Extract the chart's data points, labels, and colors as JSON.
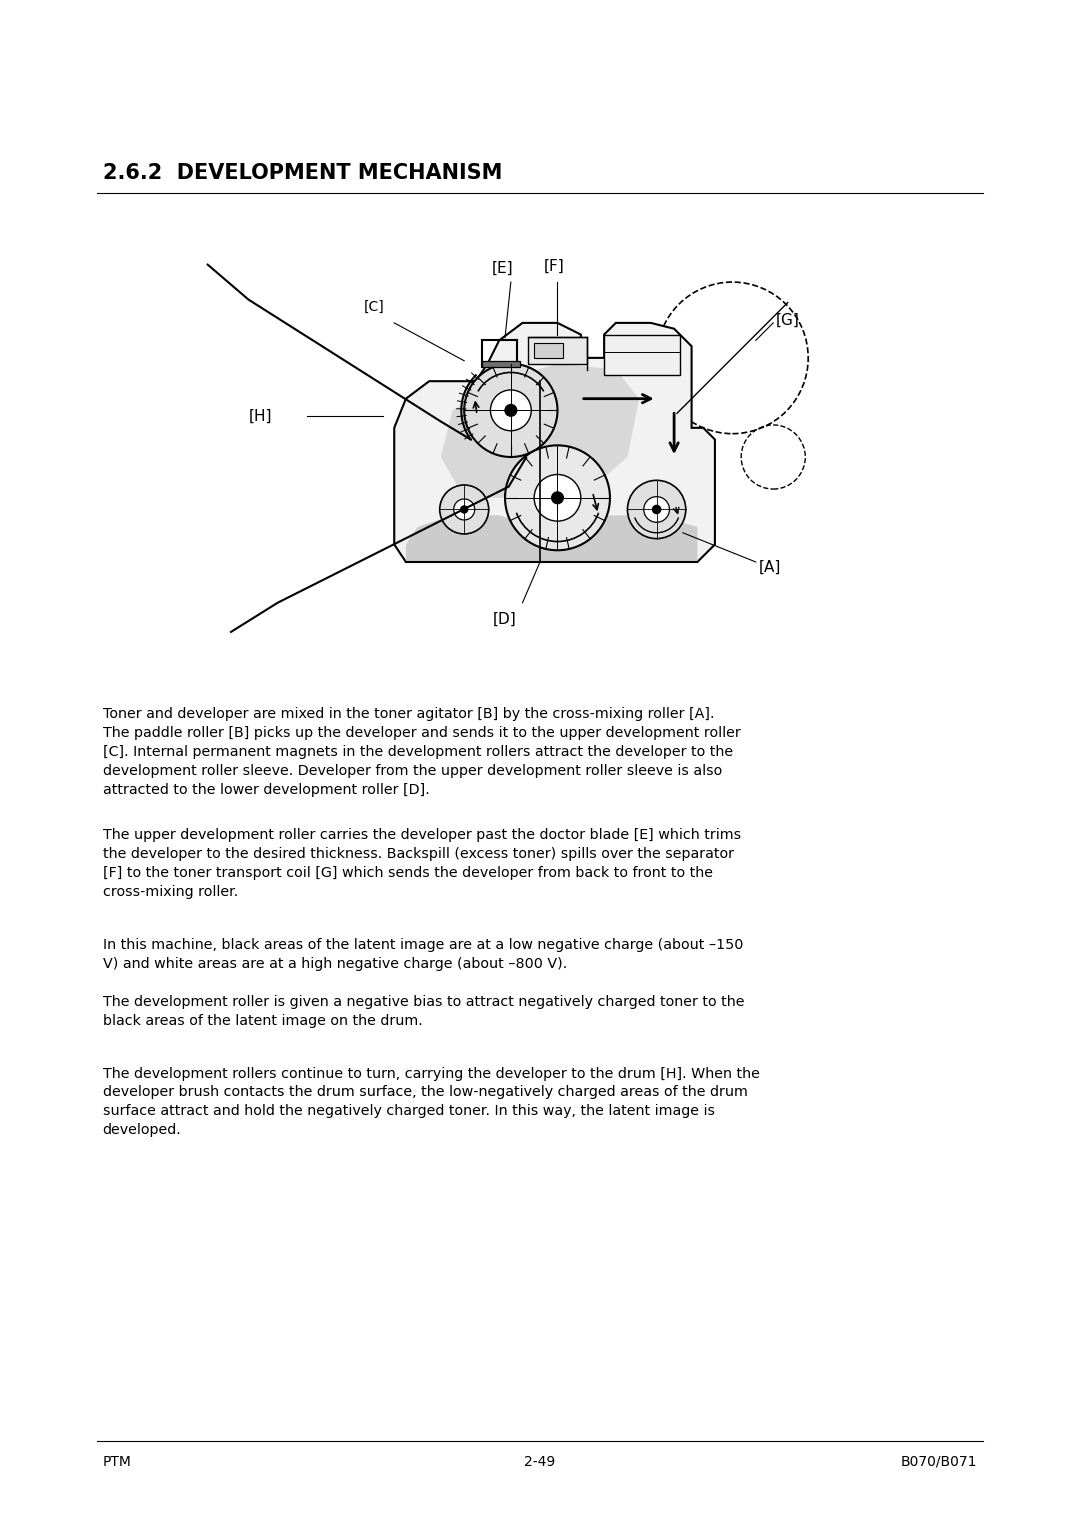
{
  "title": "2.6.2  DEVELOPMENT MECHANISM",
  "title_fontsize": 15,
  "footer_left": "PTM",
  "footer_center": "2-49",
  "footer_right": "B070/B071",
  "body_paragraphs": [
    "Toner and developer are mixed in the toner agitator [B] by the cross-mixing roller [A]. The paddle roller [B] picks up the developer and sends it to the upper development roller [C]. Internal permanent magnets in the development rollers attract the developer to the development roller sleeve. Developer from the upper development roller sleeve is also attracted to the lower development roller [D].",
    "The upper development roller carries the developer past the doctor blade [E] which trims the developer to the desired thickness. Backspill (excess toner) spills over the separator [F] to the toner transport coil [G] which sends the developer from back to front to the cross-mixing roller.",
    "In this machine, black areas of the latent image are at a low negative charge (about –150 V) and white areas are at a high negative charge (about –800 V).",
    "The development roller is given a negative bias to attract negatively charged toner to the black areas of the latent image on the drum.",
    "The development rollers continue to turn, carrying the developer to the drum [H]. When the developer brush contacts the drum surface, the low-negatively charged areas of the drum surface attract and hold the negatively charged toner. In this way, the latent image is developed."
  ],
  "bg_color": "#ffffff",
  "text_color": "#000000"
}
